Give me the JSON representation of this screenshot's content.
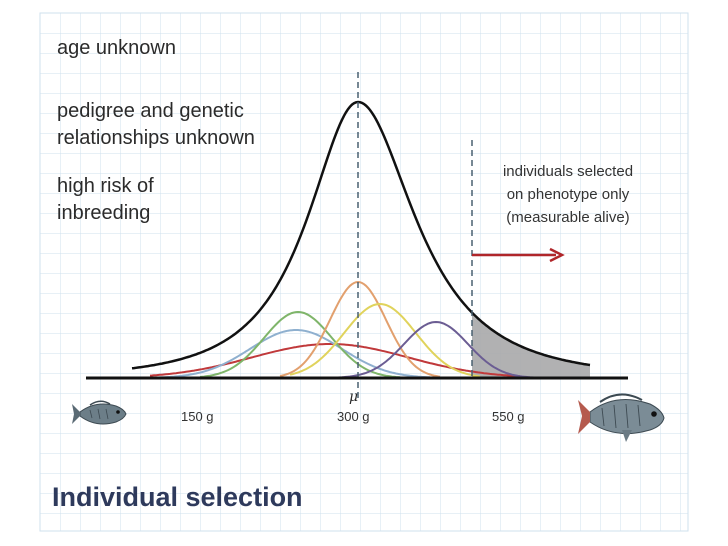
{
  "notes": {
    "age": "age unknown",
    "pedigree_line1": "pedigree and genetic",
    "pedigree_line2": "relationships unknown",
    "risk_line1": "high risk of",
    "risk_line2": "inbreeding"
  },
  "selection": {
    "line1": "individuals selected",
    "line2": "on phenotype only",
    "line3": "(measurable alive)"
  },
  "axis": {
    "mean_symbol": "μ",
    "ticks": [
      "150 g",
      "300 g",
      "550 g"
    ]
  },
  "title": "Individual selection",
  "icons": {
    "small_fish": "small-fish-icon",
    "large_fish": "large-fish-icon"
  },
  "colors": {
    "grid": "#cfe0ee",
    "overall_curve": "#111111",
    "green": "#7fb56a",
    "blue": "#8fb0cf",
    "red": "#c0393b",
    "orange": "#e2a06e",
    "yellow": "#e0d35c",
    "purple": "#6b5d93",
    "selected_fill": "#a8a8aa",
    "arrow": "#b0262a",
    "title": "#2e3a5c"
  }
}
